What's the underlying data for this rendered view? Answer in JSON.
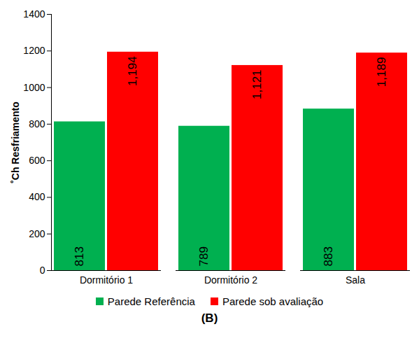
{
  "chart_data": {
    "type": "bar",
    "y_label": "˚Ch Resfriamento",
    "caption": "(B)",
    "categories": [
      "Dormitório 1",
      "Dormitório 2",
      "Sala"
    ],
    "series": [
      {
        "name": "Parede Referência",
        "color": "#00b050",
        "values": [
          813,
          789,
          883
        ],
        "value_labels": [
          "813",
          "789",
          "883"
        ]
      },
      {
        "name": "Parede sob avaliação",
        "color": "#ff0000",
        "values": [
          1194,
          1121,
          1189
        ],
        "value_labels": [
          "1,194",
          "1,121",
          "1,189"
        ]
      }
    ],
    "ylim": [
      0,
      1400
    ],
    "yticks": [
      0,
      200,
      400,
      600,
      800,
      1000,
      1200,
      1400
    ],
    "grid": false,
    "legend": "bottom",
    "data_labels": true
  }
}
